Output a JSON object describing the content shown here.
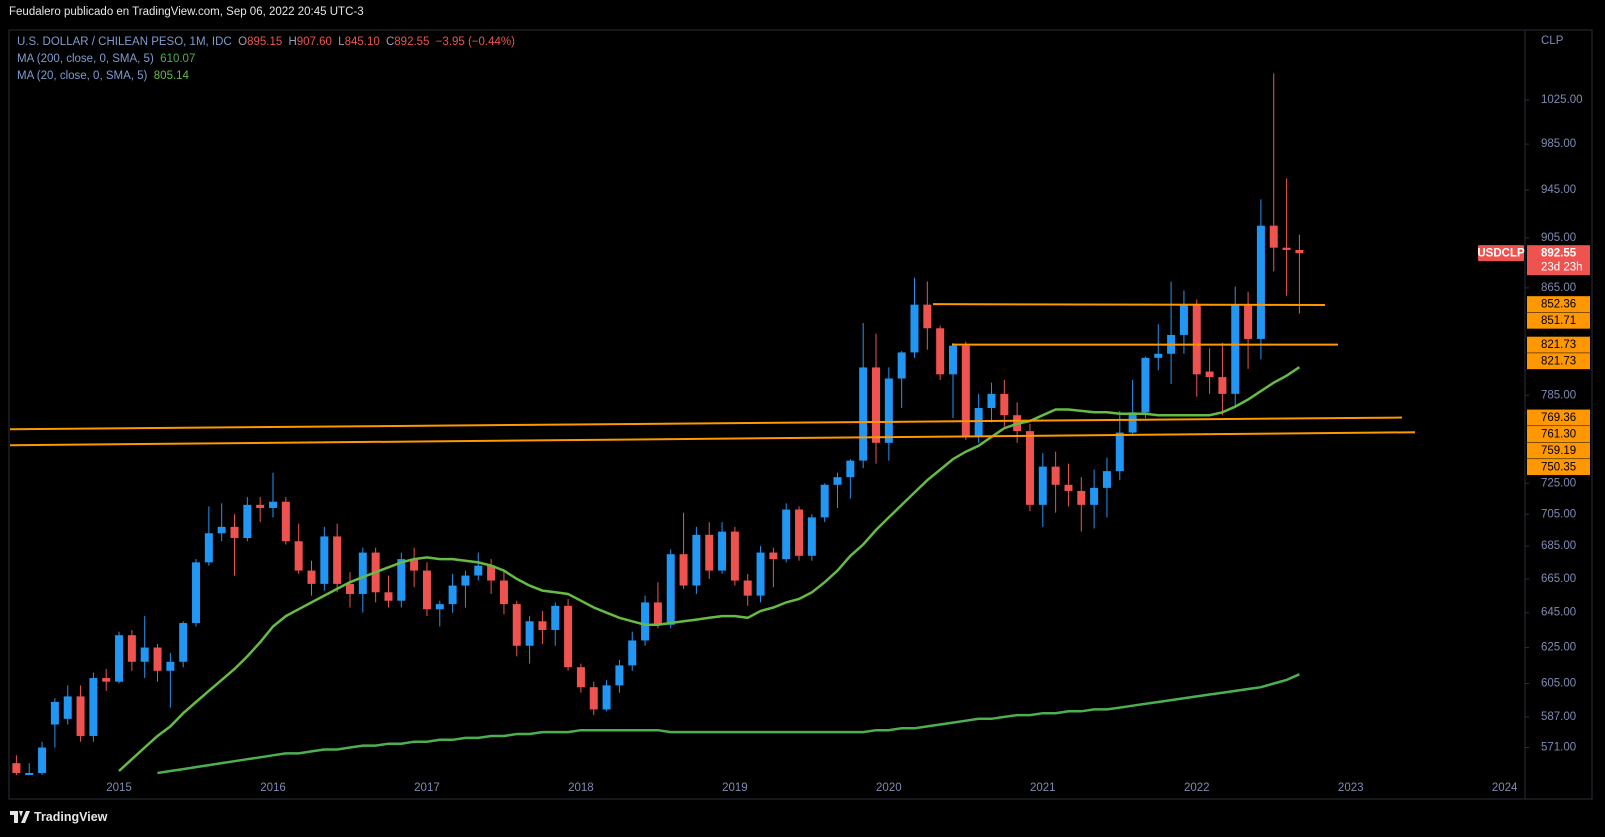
{
  "header": {
    "attribution": "Feudalero publicado en TradingView.com, Sep 06, 2022 20:45 UTC-3"
  },
  "footer": {
    "brand": "TradingView"
  },
  "chart_data": {
    "type": "candlestick",
    "legend": {
      "symbol": "U.S. DOLLAR / CHILEAN PESO, 1M, IDC",
      "ohlc": [
        {
          "key": "O",
          "label": "895.15"
        },
        {
          "key": "H",
          "label": "907.60"
        },
        {
          "key": "L",
          "label": "845.10"
        },
        {
          "key": "C",
          "label": "892.55"
        }
      ],
      "change": "−3.95 (−0.44%)"
    },
    "currency": "CLP",
    "last_price": {
      "symbol": "USDCLP",
      "countdown": "23d 23h"
    },
    "up_color": "#2196f3",
    "down_color": "#ef5350",
    "log_scale": true,
    "grid": false,
    "ylim": [
      557,
      1091
    ],
    "yticks": [
      {
        "value": 571,
        "label": "571.00"
      },
      {
        "value": 587,
        "label": "587.00"
      },
      {
        "value": 605,
        "label": "605.00"
      },
      {
        "value": 625,
        "label": "625.00"
      },
      {
        "value": 645,
        "label": "645.00"
      },
      {
        "value": 665,
        "label": "665.00"
      },
      {
        "value": 685,
        "label": "685.00"
      },
      {
        "value": 705,
        "label": "705.00"
      },
      {
        "value": 725,
        "label": "725.00"
      },
      {
        "value": 785,
        "label": "785.00"
      },
      {
        "value": 865,
        "label": "865.00"
      },
      {
        "value": 905,
        "label": "905.00"
      },
      {
        "value": 945,
        "label": "945.00"
      },
      {
        "value": 985,
        "label": "985.00"
      },
      {
        "value": 1025,
        "label": "1025.00"
      }
    ],
    "categories": [
      null,
      null,
      null,
      null,
      null,
      null,
      null,
      null,
      "2015",
      null,
      null,
      null,
      null,
      null,
      null,
      null,
      null,
      null,
      null,
      null,
      "2016",
      null,
      null,
      null,
      null,
      null,
      null,
      null,
      null,
      null,
      null,
      null,
      "2017",
      null,
      null,
      null,
      null,
      null,
      null,
      null,
      null,
      null,
      null,
      null,
      "2018",
      null,
      null,
      null,
      null,
      null,
      null,
      null,
      null,
      null,
      null,
      null,
      "2019",
      null,
      null,
      null,
      null,
      null,
      null,
      null,
      null,
      null,
      null,
      null,
      "2020",
      null,
      null,
      null,
      null,
      null,
      null,
      null,
      null,
      null,
      null,
      null,
      "2021",
      null,
      null,
      null,
      null,
      null,
      null,
      null,
      null,
      null,
      null,
      null,
      "2022",
      null,
      null,
      null,
      null,
      null,
      null,
      null,
      null,
      null,
      null,
      null,
      "2023",
      null,
      null,
      null,
      null,
      null,
      null,
      null,
      null,
      null,
      null,
      null,
      "2024"
    ],
    "open": [
      563,
      554,
      558,
      583,
      586,
      598,
      577,
      608,
      606,
      632,
      617,
      625,
      612,
      617,
      639,
      675,
      693,
      697,
      690,
      711,
      709,
      713,
      688,
      670,
      662,
      691,
      662,
      656,
      681,
      657,
      652,
      677,
      670,
      647,
      650,
      661,
      667,
      673,
      664,
      650,
      626,
      640,
      635,
      649,
      614,
      603,
      591,
      604,
      615,
      629,
      651,
      638,
      680,
      661,
      692,
      670,
      694,
      664,
      655,
      681,
      677,
      708,
      679,
      703,
      724,
      729,
      740,
      805,
      752,
      797,
      816,
      852,
      834,
      800,
      821,
      757,
      776,
      786,
      771,
      760,
      711,
      736,
      724,
      720,
      711,
      722,
      733,
      759,
      773,
      812,
      815,
      829,
      852,
      802,
      798,
      786,
      852,
      826,
      915,
      897,
      895.15,
      null,
      null,
      null,
      null,
      null,
      null,
      null,
      null,
      null,
      null,
      null,
      null,
      null,
      null,
      null,
      null
    ],
    "high": [
      567,
      563,
      574,
      597,
      604,
      604,
      611,
      613,
      634,
      635,
      643,
      627,
      622,
      640,
      677,
      710,
      712,
      705,
      716,
      716,
      732,
      716,
      699,
      676,
      697,
      699,
      669,
      684,
      684,
      667,
      681,
      684,
      675,
      652,
      668,
      670,
      681,
      677,
      670,
      652,
      643,
      646,
      651,
      653,
      616,
      606,
      607,
      618,
      634,
      655,
      663,
      683,
      706,
      697,
      700,
      700,
      697,
      668,
      685,
      684,
      712,
      710,
      705,
      725,
      732,
      741,
      838,
      830,
      805,
      817,
      873,
      870,
      836,
      823,
      824,
      786,
      794,
      796,
      780,
      765,
      745,
      746,
      738,
      729,
      734,
      742,
      774,
      796,
      813,
      837,
      870,
      863,
      856,
      819,
      823,
      866,
      862,
      937,
      1050,
      955,
      907.6,
      null,
      null,
      null,
      null,
      null,
      null,
      null,
      null,
      null,
      null,
      null,
      null,
      null,
      null,
      null,
      null
    ],
    "low": [
      554,
      549,
      555,
      571,
      583,
      574,
      574,
      601,
      605,
      612,
      608,
      606,
      592,
      614,
      637,
      673,
      688,
      667,
      688,
      700,
      703,
      686,
      668,
      655,
      658,
      657,
      648,
      645,
      651,
      648,
      648,
      660,
      643,
      637,
      645,
      648,
      664,
      656,
      644,
      620,
      616,
      627,
      626,
      612,
      600,
      588,
      590,
      600,
      612,
      626,
      636,
      636,
      659,
      656,
      665,
      668,
      661,
      649,
      651,
      660,
      675,
      676,
      676,
      700,
      709,
      715,
      735,
      738,
      740,
      776,
      812,
      818,
      796,
      769,
      754,
      752,
      766,
      763,
      752,
      707,
      697,
      706,
      710,
      694,
      696,
      703,
      727,
      757,
      769,
      803,
      793,
      815,
      784,
      786,
      771,
      776,
      804,
      811,
      878,
      859,
      845.1,
      null,
      null,
      null,
      null,
      null,
      null,
      null,
      null,
      null,
      null,
      null,
      null,
      null,
      null,
      null,
      null
    ],
    "close": [
      558,
      558,
      571,
      595,
      598,
      577,
      608,
      606,
      632,
      617,
      625,
      612,
      617,
      639,
      675,
      693,
      697,
      690,
      711,
      709,
      713,
      688,
      670,
      662,
      691,
      662,
      656,
      681,
      657,
      652,
      677,
      670,
      647,
      650,
      661,
      667,
      673,
      664,
      650,
      626,
      640,
      635,
      649,
      614,
      603,
      591,
      604,
      615,
      629,
      651,
      638,
      680,
      661,
      692,
      670,
      694,
      664,
      655,
      681,
      677,
      708,
      679,
      703,
      724,
      729,
      740,
      805,
      752,
      797,
      816,
      852,
      834,
      800,
      821,
      757,
      776,
      786,
      771,
      760,
      711,
      736,
      724,
      720,
      711,
      722,
      733,
      759,
      773,
      812,
      815,
      829,
      852,
      800,
      798,
      786,
      852,
      826,
      915,
      897,
      895.15,
      892.55,
      null,
      null,
      null,
      null,
      null,
      null,
      null,
      null,
      null,
      null,
      null,
      null,
      null,
      null,
      null,
      null
    ],
    "series": [
      {
        "name": "MA (200, close, 0, SMA, 5)",
        "color": "#4caf50",
        "values": [
          null,
          null,
          null,
          null,
          null,
          null,
          null,
          null,
          null,
          null,
          null,
          558,
          559,
          560,
          561,
          562,
          563,
          564,
          565,
          566,
          567,
          568,
          568,
          569,
          570,
          570,
          571,
          572,
          572,
          573,
          573,
          574,
          574,
          575,
          575,
          576,
          576,
          577,
          577,
          578,
          578,
          579,
          579,
          579,
          580,
          580,
          580,
          580,
          580,
          580,
          580,
          579,
          579,
          579,
          579,
          579,
          579,
          579,
          579,
          579,
          579,
          579,
          579,
          579,
          579,
          579,
          579,
          580,
          580,
          581,
          581,
          582,
          583,
          584,
          585,
          586,
          586,
          587,
          588,
          588,
          589,
          589,
          590,
          590,
          591,
          591,
          592,
          593,
          594,
          595,
          596,
          597,
          598,
          599,
          600,
          601,
          602,
          603,
          605,
          607,
          610.07,
          null,
          null,
          null,
          null,
          null,
          null,
          null,
          null,
          null,
          null,
          null,
          null,
          null,
          null,
          null,
          null
        ]
      },
      {
        "name": "MA (20, close, 0, SMA, 5)",
        "color": "#66bb44",
        "values": [
          null,
          null,
          null,
          null,
          null,
          null,
          null,
          null,
          559,
          565,
          571,
          577,
          582,
          589,
          595,
          601,
          607,
          613,
          620,
          628,
          637,
          643,
          647,
          651,
          655,
          659,
          663,
          666,
          669,
          672,
          675,
          677,
          678,
          677,
          677,
          676,
          675,
          673,
          670,
          665,
          661,
          658,
          657,
          656,
          652,
          648,
          645,
          642,
          640,
          638,
          638,
          639,
          640,
          641,
          642,
          643,
          643,
          642,
          646,
          648,
          651,
          653,
          657,
          663,
          670,
          679,
          686,
          695,
          703,
          711,
          719,
          727,
          734,
          741,
          746,
          750,
          756,
          762,
          765,
          767,
          771,
          775,
          775,
          774,
          773,
          773,
          772,
          772,
          772,
          771,
          771,
          771,
          771,
          771,
          773,
          777,
          782,
          788,
          794,
          799,
          805.14,
          null,
          null,
          null,
          null,
          null,
          null,
          null,
          null,
          null,
          null,
          null,
          null,
          null,
          null,
          null,
          null
        ]
      }
    ],
    "levels": [
      {
        "color": "#ff9800",
        "values": [
          852.36,
          851.71
        ],
        "value_labels": [
          "852.36",
          "851.71"
        ]
      },
      {
        "color": "#ff9800",
        "values": [
          821.73,
          821.73
        ],
        "value_labels": [
          "821.73",
          "821.73"
        ]
      },
      {
        "color": "#ff9800",
        "values": [
          761.3,
          769.36
        ],
        "value_labels": [
          "761.30",
          "769.36"
        ]
      },
      {
        "color": "#ff9800",
        "values": [
          750.35,
          759.19
        ],
        "value_labels": [
          "750.35",
          "759.19"
        ]
      }
    ]
  }
}
